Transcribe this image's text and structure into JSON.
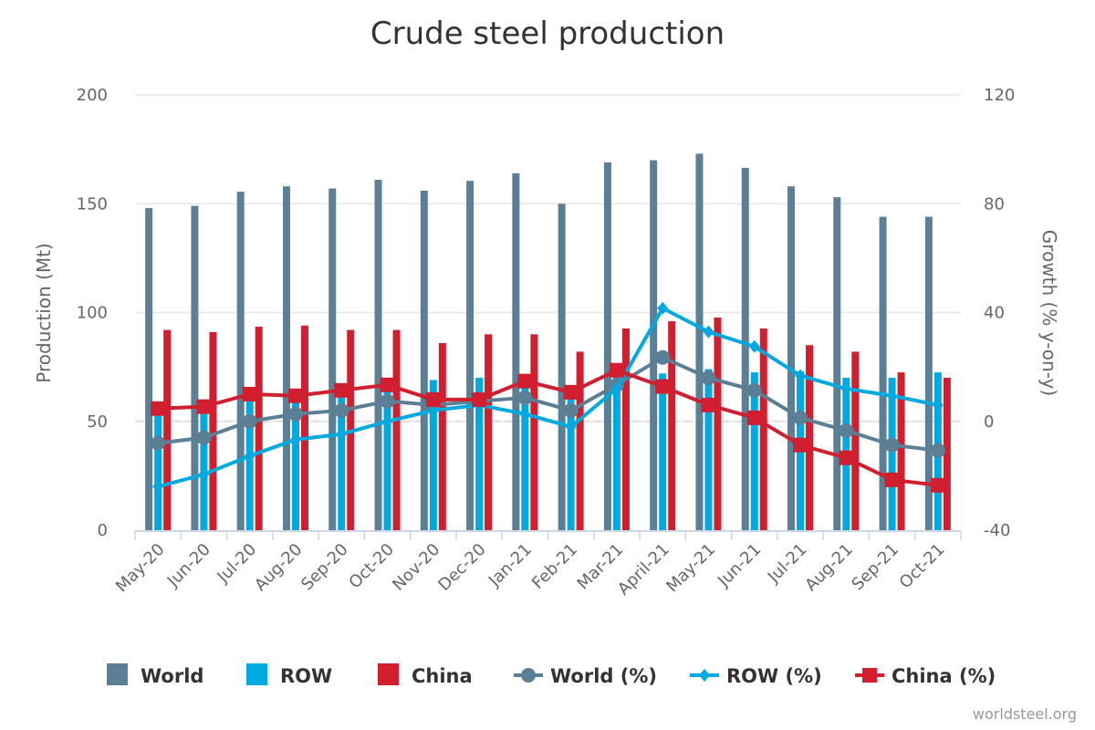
{
  "chart_data": {
    "type": "bar+line",
    "title": "Crude steel production",
    "ylabel": "Production (Mt)",
    "y2label": "Growth (% y-on-y)",
    "ylim": [
      0,
      200
    ],
    "y2lim": [
      -40,
      120
    ],
    "yticks": [
      "0",
      "50",
      "100",
      "150",
      "200"
    ],
    "y2ticks": [
      "-40",
      "0",
      "40",
      "80",
      "120"
    ],
    "categories": [
      "May-20",
      "Jun-20",
      "Jul-20",
      "Aug-20",
      "Sep-20",
      "Oct-20",
      "Nov-20",
      "Dec-20",
      "Jan-21",
      "Feb-21",
      "Mar-21",
      "April-21",
      "May-21",
      "Jun-21",
      "Jul-21",
      "Aug-21",
      "Sep-21",
      "Oct-21"
    ],
    "bar_series": [
      {
        "name": "World",
        "color": "#5b7f95",
        "values": [
          148,
          149,
          155.5,
          158,
          157,
          161,
          156,
          160.5,
          164,
          150,
          169,
          170,
          173,
          166.5,
          158,
          153,
          144,
          144
        ]
      },
      {
        "name": "ROW",
        "color": "#00a9e0",
        "values": [
          56,
          58,
          62,
          63,
          63,
          66,
          69,
          70,
          71,
          66,
          73,
          72,
          74,
          72.5,
          73,
          70,
          70,
          72.5
        ]
      },
      {
        "name": "China",
        "color": "#d11f2f",
        "values": [
          92,
          91,
          93.5,
          94,
          92,
          92,
          86,
          90,
          90,
          82,
          92.7,
          96,
          97.7,
          92.7,
          85,
          82,
          72.5,
          70
        ]
      }
    ],
    "line_series": [
      {
        "name": "World (%)",
        "color": "#5b7f95",
        "marker": "circle",
        "values": [
          -8,
          -6,
          0,
          2.7,
          4,
          7.4,
          6,
          7.4,
          8.7,
          4,
          13.4,
          23.5,
          16,
          11.4,
          1.3,
          -3.4,
          -8.7,
          -10.7
        ]
      },
      {
        "name": "ROW (%)",
        "color": "#00a9e0",
        "marker": "diamond",
        "values": [
          -24,
          -19.5,
          -12.7,
          -6.7,
          -4.7,
          0,
          4,
          6,
          2.7,
          -2,
          12,
          41.6,
          32.9,
          27.5,
          16.8,
          12,
          9.4,
          6
        ]
      },
      {
        "name": "China (%)",
        "color": "#d11f2f",
        "marker": "square",
        "values": [
          4.7,
          5.4,
          10,
          9.4,
          11.4,
          13.4,
          8,
          8,
          14.8,
          10.7,
          18.8,
          12.8,
          6,
          1.3,
          -8.7,
          -13.4,
          -21.5,
          -23.5
        ]
      }
    ],
    "grid": true,
    "legend": "bottom"
  },
  "credit": "worldsteel.org"
}
